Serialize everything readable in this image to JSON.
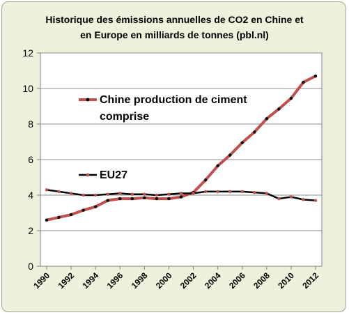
{
  "chart_data": {
    "type": "line",
    "title_lines": [
      "Historique des émissions annuelles de CO2 en Chine et",
      "en Europe  en milliards de tonnes (pbl.nl)"
    ],
    "xlabel": "",
    "ylabel": "",
    "x": [
      1990,
      1991,
      1992,
      1993,
      1994,
      1995,
      1996,
      1997,
      1998,
      1999,
      2000,
      2001,
      2002,
      2003,
      2004,
      2005,
      2006,
      2007,
      2008,
      2009,
      2010,
      2011,
      2012
    ],
    "xticks": [
      "1990",
      "1992",
      "1994",
      "1996",
      "1998",
      "2000",
      "2002",
      "2004",
      "2006",
      "2008",
      "2010",
      "2012"
    ],
    "ylim": [
      0,
      12
    ],
    "yticks": [
      "0",
      "2",
      "4",
      "6",
      "8",
      "10",
      "12"
    ],
    "grid": "horizontal",
    "series": [
      {
        "name": "Chine  production de  ciment comprise",
        "label_lines": [
          "Chine  production de  ciment",
          "comprise"
        ],
        "color": "#c0504d",
        "marker_color": "#000000",
        "values": [
          2.6,
          2.75,
          2.9,
          3.15,
          3.35,
          3.7,
          3.8,
          3.8,
          3.85,
          3.8,
          3.8,
          3.9,
          4.15,
          4.85,
          5.65,
          6.25,
          6.95,
          7.55,
          8.3,
          8.85,
          9.45,
          10.35,
          10.7
        ]
      },
      {
        "name": "EU27",
        "label_lines": [
          "EU27"
        ],
        "color": "#000000",
        "marker_color": "#c0504d",
        "values": [
          4.3,
          4.2,
          4.1,
          4.0,
          4.0,
          4.05,
          4.1,
          4.05,
          4.05,
          4.0,
          4.05,
          4.1,
          4.1,
          4.2,
          4.2,
          4.2,
          4.2,
          4.15,
          4.1,
          3.8,
          3.9,
          3.75,
          3.7
        ]
      }
    ]
  }
}
